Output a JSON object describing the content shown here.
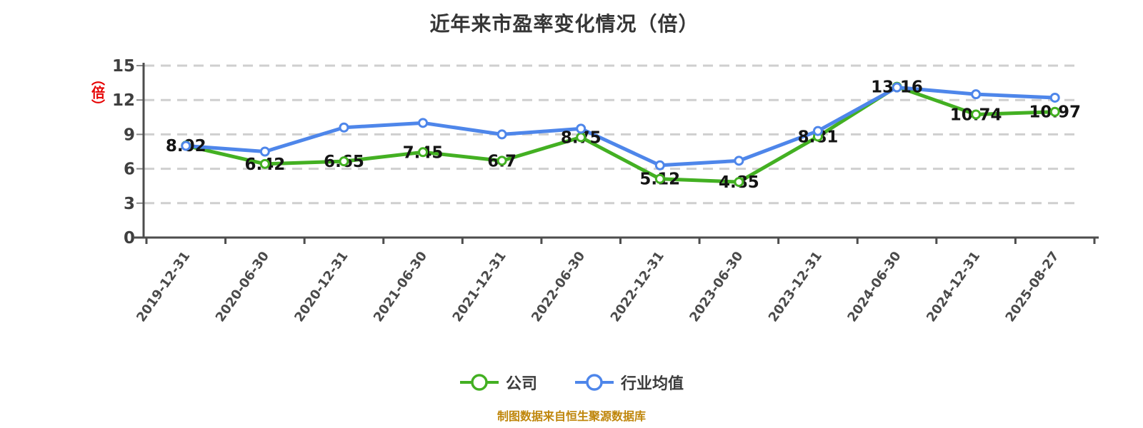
{
  "title": "近年来市盈率变化情况（倍）",
  "y_axis_unit": "（倍）",
  "footer": "制图数据来自恒生聚源数据库",
  "legend": [
    {
      "label": "公司",
      "color": "#43b022"
    },
    {
      "label": "行业均值",
      "color": "#4e86ea"
    }
  ],
  "colors": {
    "background": "#ffffff",
    "title_text": "#363636",
    "axis_line": "#4d4d4d",
    "tick_label": "#3f3f3f",
    "gridline": "#cfcfcf",
    "data_label": "#141414",
    "unit_red": "#e60000",
    "footer_orange": "#bf860b",
    "marker_fill": "#ffffff"
  },
  "chart_data": {
    "type": "line",
    "title": "近年来市盈率变化情况（倍）",
    "categories": [
      "2019-12-31",
      "2020-06-30",
      "2020-12-31",
      "2021-06-30",
      "2021-12-31",
      "2022-06-30",
      "2022-12-31",
      "2023-06-30",
      "2023-12-31",
      "2024-06-30",
      "2024-12-31",
      "2025-08-27"
    ],
    "series": [
      {
        "name": "公司",
        "color": "#43b022",
        "labeled": true,
        "values": [
          8.02,
          6.42,
          6.65,
          7.45,
          6.7,
          8.75,
          5.12,
          4.85,
          8.81,
          13.16,
          10.74,
          10.97
        ]
      },
      {
        "name": "行业均值",
        "color": "#4e86ea",
        "labeled": false,
        "values": [
          8.0,
          7.5,
          9.6,
          10.0,
          9.0,
          9.5,
          6.3,
          6.7,
          9.3,
          13.1,
          12.5,
          12.2
        ]
      }
    ],
    "ylim": [
      0,
      15
    ],
    "yticks": [
      0,
      3,
      6,
      9,
      12,
      15
    ],
    "grid": "horizontal-dashed",
    "legend_position": "bottom",
    "x_label_rotation": -55,
    "marker": "circle-white-fill"
  }
}
